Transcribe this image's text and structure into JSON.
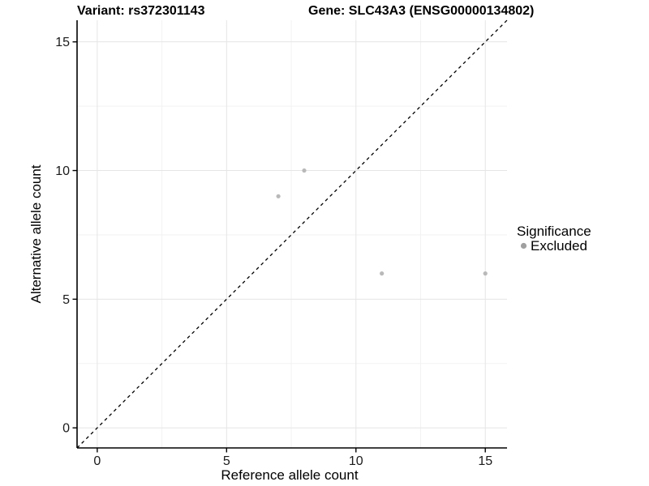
{
  "header": {
    "variant_title": "Variant: rs372301143",
    "gene_title": "Gene: SLC43A3 (ENSG00000134802)"
  },
  "legend": {
    "title": "Significance",
    "items": [
      {
        "label": "Excluded",
        "color": "#a0a0a0"
      }
    ]
  },
  "colors": {
    "background": "#ffffff",
    "axis": "#000000",
    "grid_major": "#e5e5e5",
    "grid_minor": "#f2f2f2",
    "point": "#b9b9b9",
    "reference_line": "#000000"
  },
  "chart_data": {
    "type": "scatter",
    "title": "Variant: rs372301143   Gene: SLC43A3 (ENSG00000134802)",
    "xlabel": "Reference allele count",
    "ylabel": "Alternative allele count",
    "series": [
      {
        "name": "Excluded",
        "points": [
          {
            "x": 7,
            "y": 9
          },
          {
            "x": 8,
            "y": 10
          },
          {
            "x": 11,
            "y": 6
          },
          {
            "x": 15,
            "y": 6
          }
        ]
      }
    ],
    "x_ticks": [
      0,
      5,
      10,
      15
    ],
    "y_ticks": [
      0,
      5,
      10,
      15
    ],
    "x_minor_ticks": [
      2.5,
      7.5,
      12.5
    ],
    "y_minor_ticks": [
      2.5,
      7.5,
      12.5
    ],
    "xlim": [
      -0.78,
      15.84
    ],
    "ylim": [
      -0.78,
      15.84
    ],
    "grid": "major+minor",
    "legend_position": "right",
    "point_color": "#b9b9b9",
    "reference_line": {
      "slope": 1,
      "intercept": 0,
      "style": "dashed",
      "color": "#000000"
    }
  }
}
